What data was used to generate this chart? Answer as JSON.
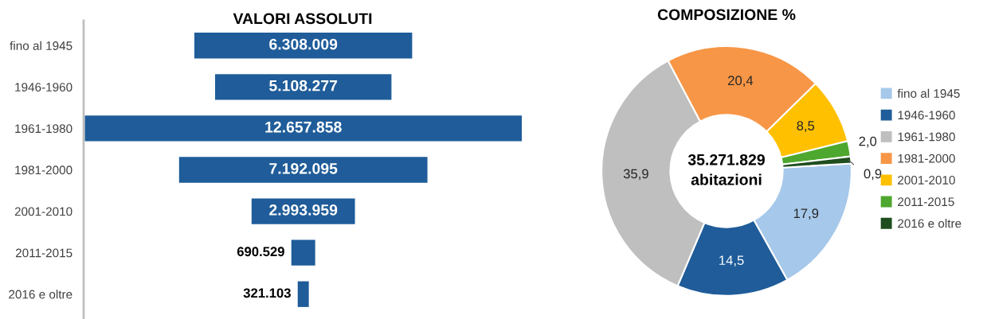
{
  "chart_data": [
    {
      "type": "other",
      "title": "VALORI ASSOLUTI",
      "categories": [
        "fino al 1945",
        "1946-1960",
        "1961-1980",
        "1981-2000",
        "2001-2010",
        "2011-2015",
        "2016 e oltre"
      ],
      "values": [
        6308009,
        5108277,
        12657858,
        7192095,
        2993959,
        690529,
        321103
      ],
      "color": "#1f5c99",
      "value_labels": [
        "6.308.009",
        "5.108.277",
        "12.657.858",
        "7.192.095",
        "2.993.959",
        "690.529",
        "321.103"
      ]
    },
    {
      "type": "donut",
      "title": "COMPOSIZIONE %",
      "categories": [
        "fino al 1945",
        "1946-1960",
        "1961-1980",
        "1981-2000",
        "2001-2010",
        "2011-2015",
        "2016 e oltre"
      ],
      "values": [
        17.9,
        14.5,
        35.9,
        20.4,
        8.5,
        2.0,
        0.9
      ],
      "colors": [
        "#a6c8ea",
        "#1f5c99",
        "#bfbfbf",
        "#f79646",
        "#ffc000",
        "#4ea72e",
        "#1e4d1e"
      ],
      "value_labels": [
        "17,9",
        "14,5",
        "35,9",
        "20,4",
        "8,5",
        "2,0",
        "0,9"
      ],
      "annotations": [
        "35.271.829",
        "abitazioni"
      ],
      "legend": "right"
    }
  ]
}
